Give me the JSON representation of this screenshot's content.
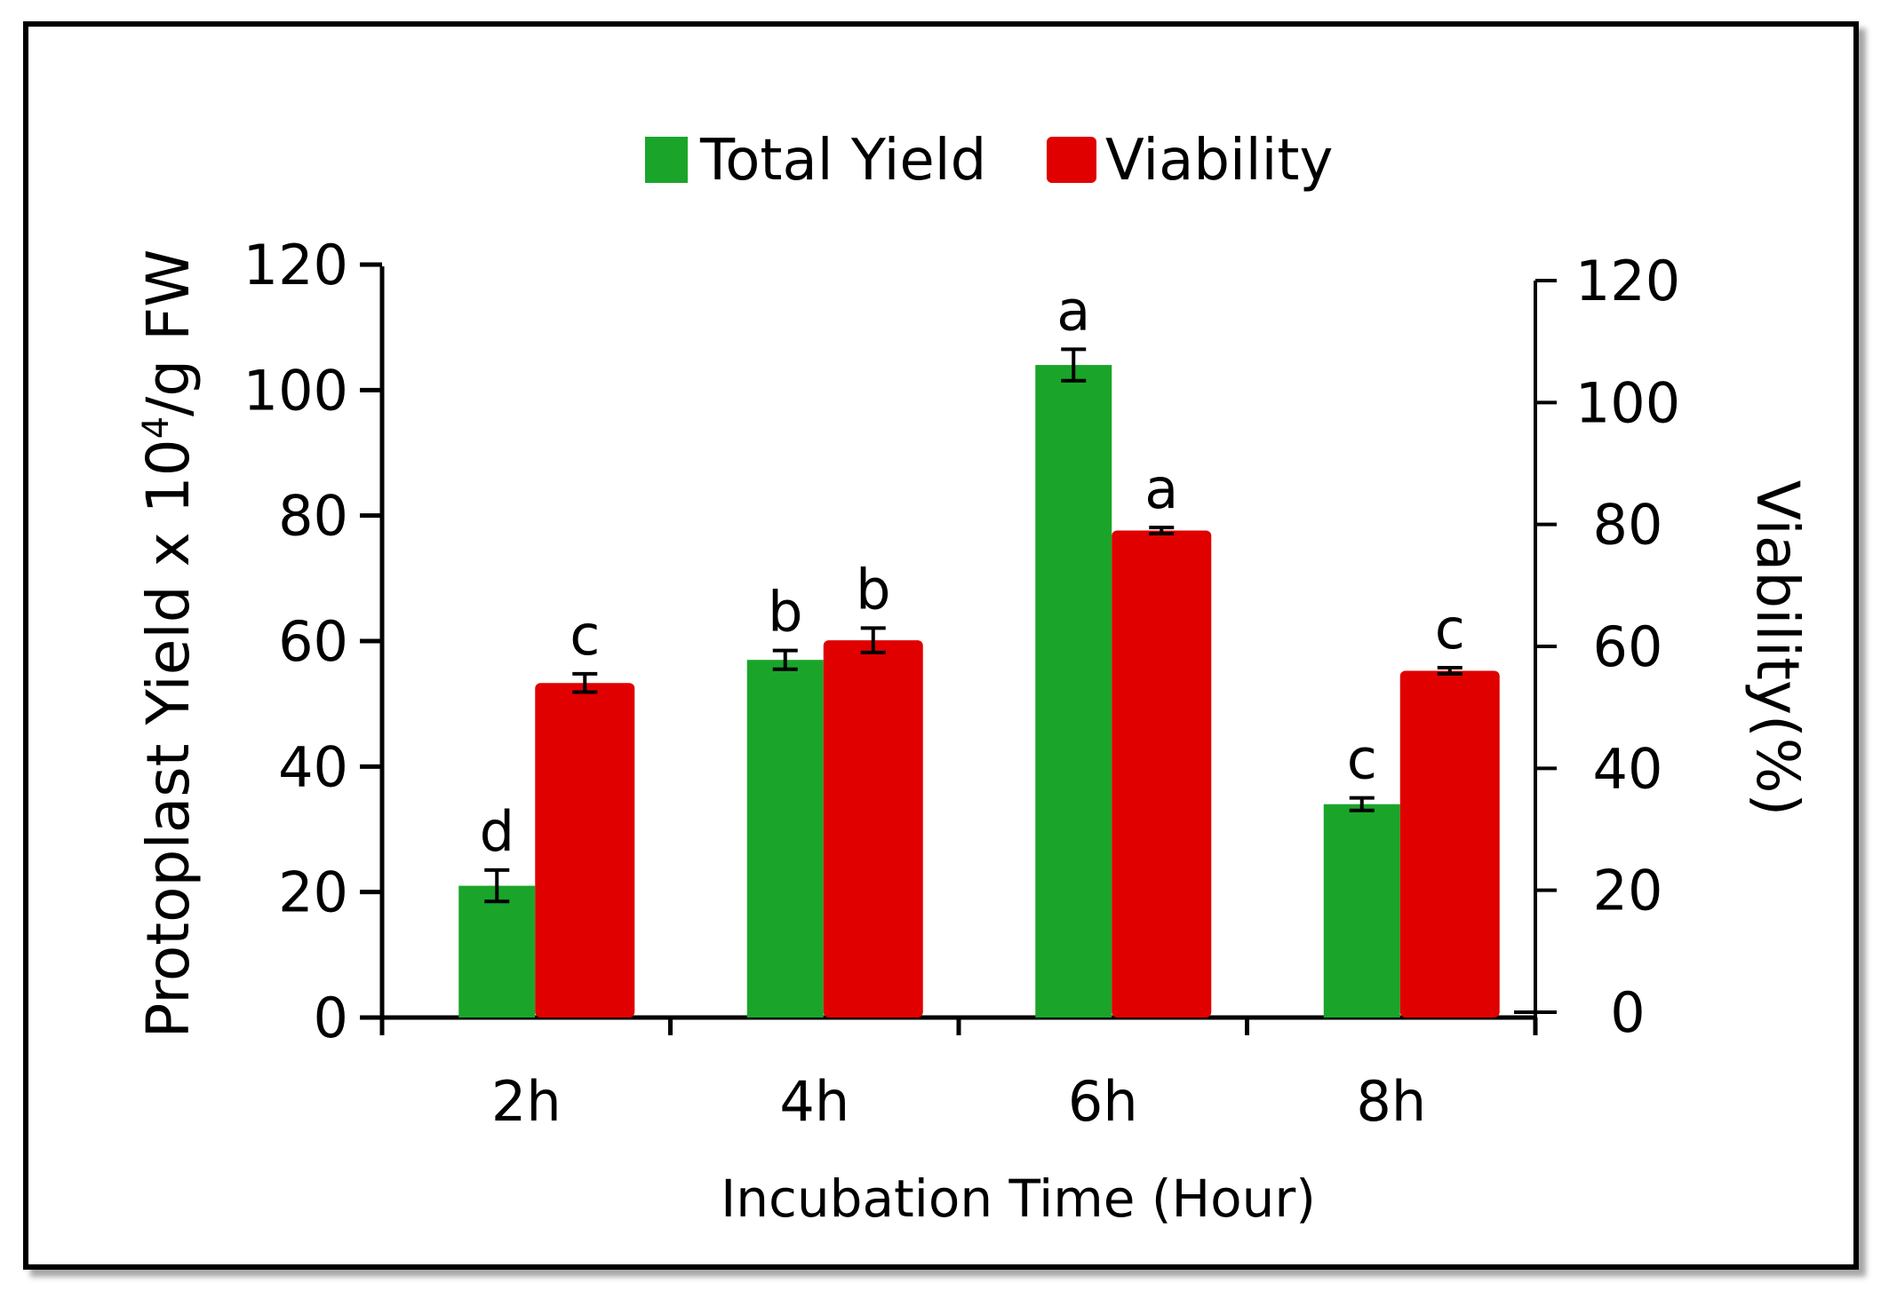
{
  "chart_data": {
    "type": "bar",
    "title": "",
    "xlabel": "Incubation Time (Hour)",
    "ylabel_prefix": "Protoplast Yield x 10",
    "ylabel_sup": "4",
    "ylabel_suffix": "/g FW",
    "y2label": "Viability(%)",
    "categories": [
      "2h",
      "4h",
      "6h",
      "8h"
    ],
    "ylim": [
      0,
      120
    ],
    "y2lim": [
      0,
      120
    ],
    "yticks": [
      "0",
      "20",
      "40",
      "60",
      "80",
      "100",
      "120"
    ],
    "y2ticks": [
      "0",
      "20",
      "40",
      "60",
      "80",
      "100",
      "120"
    ],
    "legend_position": "top-center",
    "series": [
      {
        "name": "Total Yield",
        "axis": "left",
        "color": "#1aa52a",
        "values": [
          21,
          57,
          104,
          34
        ],
        "errors": [
          2.5,
          1.5,
          2.5,
          1
        ],
        "labels": [
          "d",
          "b",
          "a",
          "c"
        ]
      },
      {
        "name": "Viability",
        "axis": "right",
        "color": "#e00000",
        "values": [
          54,
          61,
          79,
          56
        ],
        "errors": [
          1.5,
          2,
          0.5,
          0.5
        ],
        "labels": [
          "c",
          "b",
          "a",
          "c"
        ]
      }
    ]
  }
}
